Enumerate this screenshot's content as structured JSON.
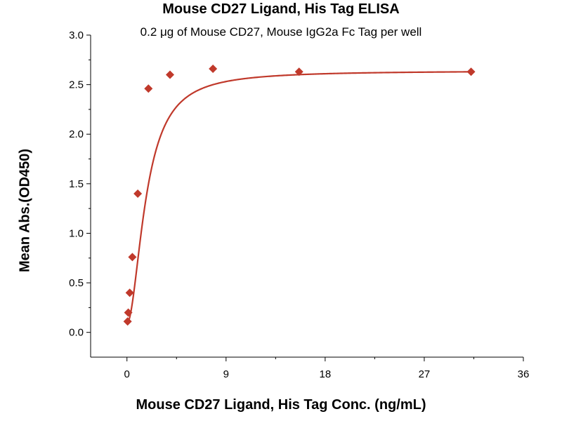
{
  "chart_data": {
    "type": "scatter",
    "title": "Mouse CD27 Ligand, His Tag ELISA",
    "subtitle": "0.2 μg of Mouse CD27, Mouse IgG2a Fc Tag per well",
    "xlabel": "Mouse CD27 Ligand, His Tag Conc. (ng/mL)",
    "ylabel": "Mean Abs.(OD450)",
    "xlim": [
      -3.3,
      36
    ],
    "ylim": [
      -0.25,
      3.0
    ],
    "xticks": [
      0,
      9,
      18,
      27,
      36
    ],
    "yticks": [
      0.0,
      0.5,
      1.0,
      1.5,
      2.0,
      2.5,
      3.0
    ],
    "xtick_labels": [
      "0",
      "9",
      "18",
      "27",
      "36"
    ],
    "ytick_labels": [
      "0.0",
      "0.5",
      "1.0",
      "1.5",
      "2.0",
      "2.5",
      "3.0"
    ],
    "grid": false,
    "legend": "none",
    "color": "#c0392b",
    "series": [
      {
        "marker": "diamond",
        "x": [
          0.06,
          0.12,
          0.25,
          0.49,
          0.98,
          1.95,
          3.91,
          7.81,
          15.63,
          31.25
        ],
        "y": [
          0.11,
          0.2,
          0.4,
          0.76,
          1.4,
          2.46,
          2.6,
          2.66,
          2.63,
          2.63
        ],
        "fit": "4PL"
      }
    ]
  }
}
